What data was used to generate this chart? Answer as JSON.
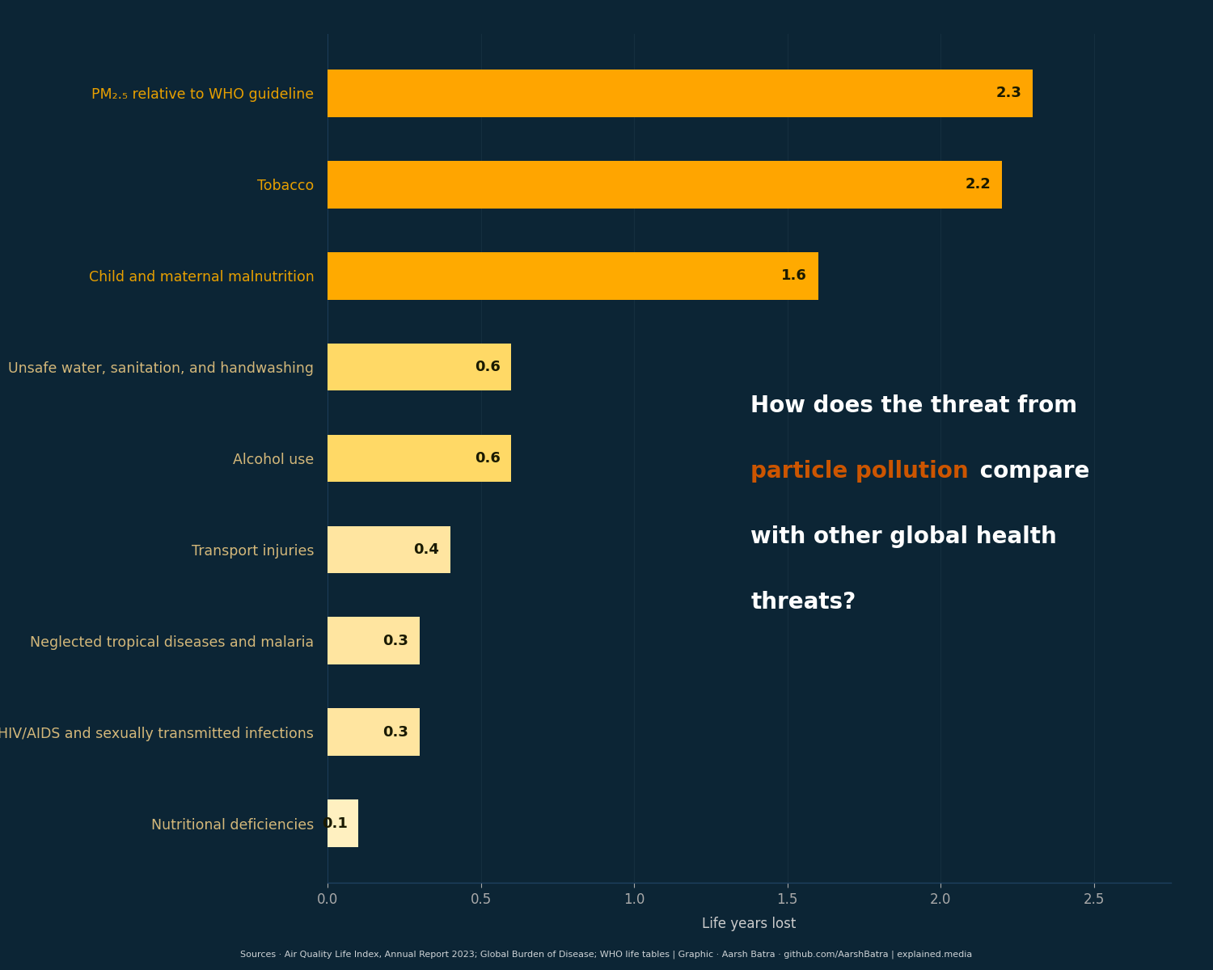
{
  "categories": [
    "PM₂.₅ relative to WHO guideline",
    "Tobacco",
    "Child and maternal malnutrition",
    "Unsafe water, sanitation, and handwashing",
    "Alcohol use",
    "Transport injuries",
    "Neglected tropical diseases and malaria",
    "HIV/AIDS and sexually transmitted infections",
    "Nutritional deficiencies"
  ],
  "values": [
    2.3,
    2.2,
    1.6,
    0.6,
    0.6,
    0.4,
    0.3,
    0.3,
    0.1
  ],
  "bar_colors": [
    "#FFA500",
    "#FFA500",
    "#FFAA00",
    "#FFD966",
    "#FFD966",
    "#FFE5A0",
    "#FFE5A0",
    "#FFE5A0",
    "#FFF0C0"
  ],
  "value_label_color": "#1A1A00",
  "background_color": "#0C2535",
  "label_color_highlighted": "#E8A000",
  "label_color_normal": "#D4B87A",
  "xlabel": "Life years lost",
  "xlim": [
    0,
    2.75
  ],
  "xticks": [
    0.0,
    0.5,
    1.0,
    1.5,
    2.0,
    2.5
  ],
  "annotation_color_normal": "#FFFFFF",
  "annotation_color_highlight": "#CC5500",
  "footer_text": "Sources · Air Quality Life Index, Annual Report 2023; Global Burden of Disease; WHO life tables | Graphic · Aarsh Batra · github.com/AarshBatra | explained.media",
  "separator_color": "#1E4060",
  "grid_color": "#163040",
  "tick_color": "#AAAAAA",
  "axis_label_color": "#CCCCCC"
}
